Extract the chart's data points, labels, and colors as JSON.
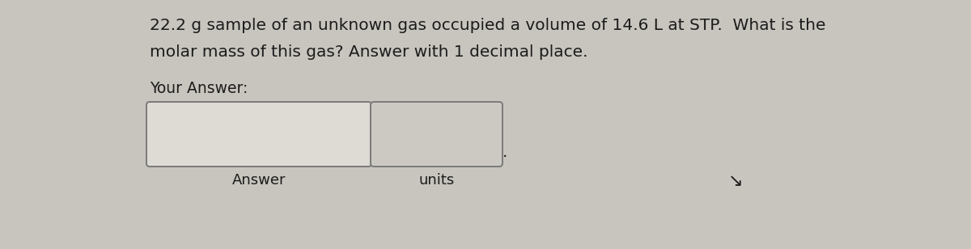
{
  "background_color": "#c8c5be",
  "question_line1": "22.2 g sample of an unknown gas occupied a volume of 14.6 L at STP.  What is the",
  "question_line2": "molar mass of this gas? Answer with 1 decimal place.",
  "your_answer_label": "Your Answer:",
  "answer_label": "Answer",
  "units_label": "units",
  "text_color": "#1c1c1c",
  "box1_facecolor": "#dedad4",
  "box2_facecolor": "#ccc9c3",
  "box_edgecolor": "#7a7a7a",
  "font_size_question": 14.5,
  "font_size_label": 13.5,
  "font_size_sublabel": 13.0,
  "cursor_symbol": "↱"
}
